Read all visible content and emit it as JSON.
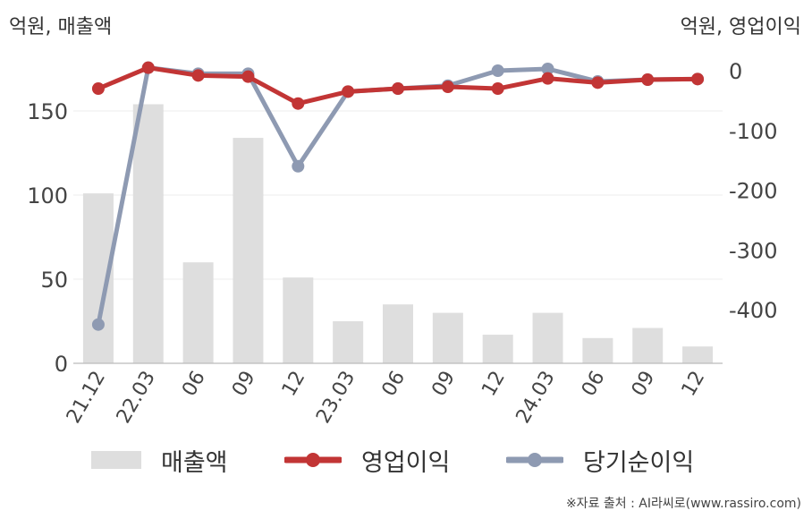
{
  "left_unit": "억원, 매출액",
  "right_unit": "억원, 영업이익",
  "source": "※자료 출처 : AI라씨로(www.rassiro.com)",
  "chart_data": {
    "type": "bar+line",
    "categories": [
      "21.12",
      "22.03",
      "06",
      "09",
      "12",
      "23.03",
      "06",
      "09",
      "12",
      "24.03",
      "06",
      "09",
      "12"
    ],
    "y_left": {
      "ticks": [
        "0",
        "50",
        "100",
        "150"
      ],
      "range": [
        0,
        175
      ]
    },
    "y_right": {
      "ticks": [
        "0",
        "-100",
        "-200",
        "-300",
        "-400"
      ],
      "range": [
        -493,
        18
      ]
    },
    "legend": [
      "매출액",
      "영업이익",
      "당기순이익"
    ],
    "series": [
      {
        "name": "매출액",
        "type": "bar",
        "axis": "left",
        "color": "#dedede",
        "values": [
          101,
          154,
          60,
          134,
          51,
          25,
          35,
          30,
          17,
          30,
          15,
          21,
          10
        ]
      },
      {
        "name": "영업이익",
        "type": "line",
        "axis": "right",
        "color": "#c23535",
        "values": [
          -30,
          5,
          -8,
          -10,
          -55,
          -35,
          -30,
          -27,
          -30,
          -13,
          -20,
          -15,
          -14
        ]
      },
      {
        "name": "당기순이익",
        "type": "line",
        "axis": "right",
        "color": "#8e9ab2",
        "values": [
          -425,
          5,
          -5,
          -5,
          -160,
          -35,
          -30,
          -25,
          0,
          3,
          -18,
          -15,
          -14
        ]
      }
    ]
  }
}
